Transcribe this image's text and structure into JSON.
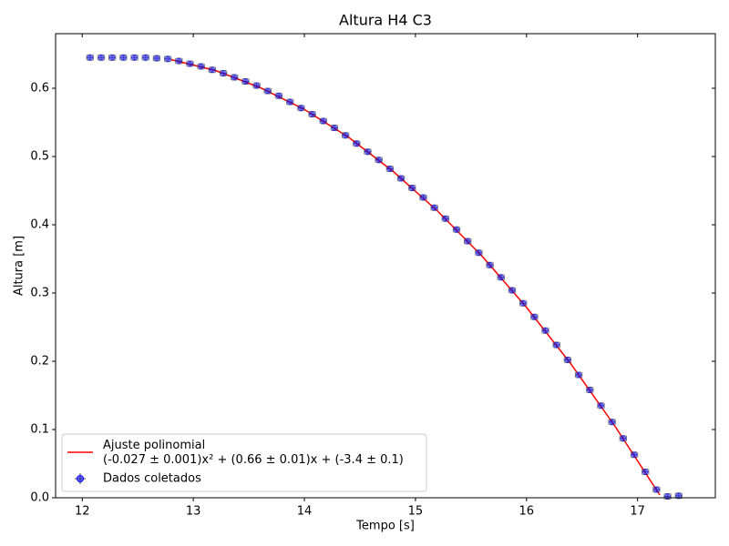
{
  "chart_data": {
    "type": "line",
    "title": "Altura H4 C3",
    "x_label": "Tempo [s]",
    "y_label": "Altura [m]",
    "xlim": [
      11.76,
      17.7
    ],
    "ylim": [
      0,
      0.68
    ],
    "xticks": [
      12,
      13,
      14,
      15,
      16,
      17
    ],
    "yticks": [
      {
        "value": 0,
        "label": "0.0"
      },
      0.1,
      0.2,
      0.3,
      0.4,
      0.5,
      0.6
    ],
    "legend": "lower left",
    "series": [
      {
        "name": "Ajuste polinomial\n(-0.027 ± 0.001)x² + (0.66 ± 0.01)x + (-3.4 ± 0.1)",
        "type": "line",
        "color": "#ff0000",
        "x": [
          12.8,
          13.2,
          13.6,
          14.0,
          14.4,
          14.8,
          15.2,
          15.6,
          16.0,
          16.4,
          16.8,
          17.2
        ],
        "values": [
          0.642,
          0.626,
          0.601,
          0.569,
          0.528,
          0.478,
          0.42,
          0.354,
          0.279,
          0.196,
          0.104,
          0.004
        ]
      },
      {
        "name": "Dados coletados",
        "type": "errorbar",
        "color": "#0000ff",
        "xerr": 0.03,
        "yerr": 0.004,
        "x": [
          12.07,
          12.17,
          12.27,
          12.37,
          12.47,
          12.57,
          12.67,
          12.77,
          12.87,
          12.97,
          13.07,
          13.17,
          13.27,
          13.37,
          13.47,
          13.57,
          13.67,
          13.77,
          13.87,
          13.97,
          14.07,
          14.17,
          14.27,
          14.37,
          14.47,
          14.57,
          14.67,
          14.77,
          14.87,
          14.97,
          15.07,
          15.17,
          15.27,
          15.37,
          15.47,
          15.57,
          15.67,
          15.77,
          15.87,
          15.97,
          16.07,
          16.17,
          16.27,
          16.37,
          16.47,
          16.57,
          16.67,
          16.77,
          16.87,
          16.97,
          17.07,
          17.17,
          17.27,
          17.37
        ],
        "values": [
          0.645,
          0.645,
          0.645,
          0.645,
          0.645,
          0.645,
          0.644,
          0.643,
          0.64,
          0.636,
          0.632,
          0.627,
          0.622,
          0.616,
          0.61,
          0.604,
          0.596,
          0.589,
          0.58,
          0.571,
          0.562,
          0.552,
          0.542,
          0.531,
          0.519,
          0.507,
          0.495,
          0.482,
          0.468,
          0.454,
          0.44,
          0.425,
          0.409,
          0.393,
          0.376,
          0.359,
          0.341,
          0.323,
          0.304,
          0.285,
          0.265,
          0.245,
          0.224,
          0.202,
          0.18,
          0.158,
          0.135,
          0.111,
          0.087,
          0.063,
          0.038,
          0.012,
          0.002,
          0.003
        ]
      }
    ]
  }
}
